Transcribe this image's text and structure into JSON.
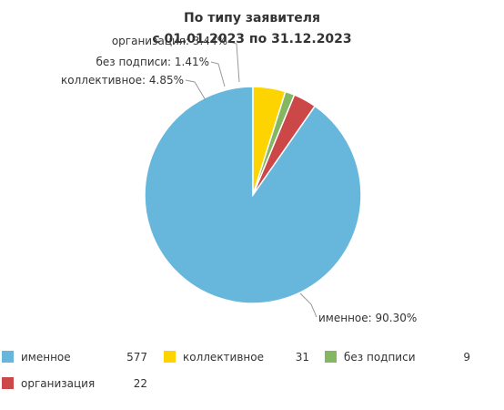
{
  "chart_data": {
    "type": "pie",
    "title": "По типу заявителя",
    "subtitle": "с 01.01.2023 по 31.12.2023",
    "slices": [
      {
        "name": "именное",
        "value": 577,
        "percent_label": "именное: 90.30%",
        "color": "#67b7dc"
      },
      {
        "name": "коллективное",
        "value": 31,
        "percent_label": "коллективное: 4.85%",
        "color": "#fdd400"
      },
      {
        "name": "без подписи",
        "value": 9,
        "percent_label": "без подписи: 1.41%",
        "color": "#84b761"
      },
      {
        "name": "организация",
        "value": 22,
        "percent_label": "организация: 3.44%",
        "color": "#cc4748"
      }
    ],
    "legend_placement": "bottom"
  }
}
